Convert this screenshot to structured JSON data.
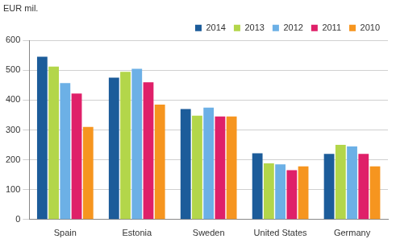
{
  "chart_data": {
    "type": "bar",
    "y_label": "EUR mil.",
    "categories": [
      "Spain",
      "Estonia",
      "Sweden",
      "United States",
      "Germany"
    ],
    "series": [
      {
        "name": "2014",
        "color": "#1c5c9a",
        "values": [
          545,
          475,
          370,
          222,
          220
        ]
      },
      {
        "name": "2013",
        "color": "#b3d64a",
        "values": [
          512,
          495,
          348,
          188,
          250
        ]
      },
      {
        "name": "2012",
        "color": "#6cb0e6",
        "values": [
          457,
          505,
          375,
          185,
          245
        ]
      },
      {
        "name": "2011",
        "color": "#df2069",
        "values": [
          422,
          460,
          345,
          165,
          220
        ]
      },
      {
        "name": "2010",
        "color": "#f6951f",
        "values": [
          310,
          385,
          345,
          178,
          178
        ]
      }
    ],
    "ylim": [
      0,
      600
    ],
    "yticks": [
      0,
      100,
      200,
      300,
      400,
      500,
      600
    ],
    "grid": true,
    "legend": "top"
  }
}
